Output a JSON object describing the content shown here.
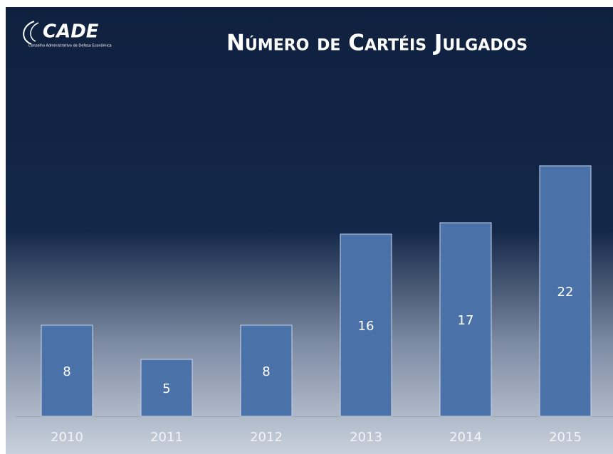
{
  "logo": {
    "name": "CADE",
    "tagline": "Conselho Administrativo de Defesa Econômica"
  },
  "chart_data": {
    "type": "bar",
    "title": "Número de Cartéis Julgados",
    "categories": [
      "2010",
      "2011",
      "2012",
      "2013",
      "2014",
      "2015"
    ],
    "values": [
      8,
      5,
      8,
      16,
      17,
      22
    ],
    "color": "#4a72a8",
    "ylim": [
      0,
      25
    ]
  }
}
